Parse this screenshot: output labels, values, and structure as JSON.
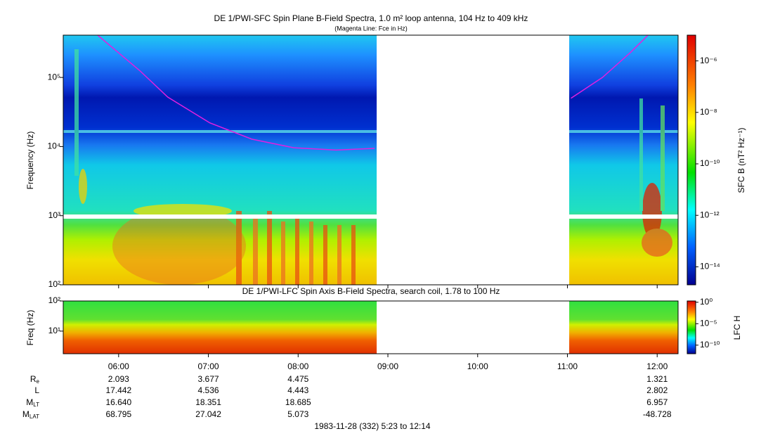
{
  "chart_data": [
    {
      "type": "spectrogram",
      "title": "DE 1/PWI-SFC  Spin Plane B-Field Spectra, 1.0 m² loop antenna, 104 Hz to 409 kHz",
      "subtitle": "(Magenta Line: Fce in Hz)",
      "ylabel": "Frequency (Hz)",
      "yscale": "log",
      "xlim": [
        5.383,
        12.233
      ],
      "ylim": [
        100,
        409000
      ],
      "yticks": [
        {
          "value": 100,
          "label": "10²"
        },
        {
          "value": 1000,
          "label": "10³"
        },
        {
          "value": 10000,
          "label": "10⁴"
        },
        {
          "value": 100000,
          "label": "10⁵"
        }
      ],
      "data_gap": [
        8.875,
        11.02
      ],
      "series": [
        {
          "color": "#e020e0",
          "x": [
            5.766,
            6.234,
            6.547,
            7.016,
            7.484,
            7.953,
            8.422,
            8.852,
            9.5,
            11.039,
            11.39,
            11.703,
            11.898
          ],
          "values": [
            409000,
            126000,
            52000,
            22000,
            12800,
            9600,
            8900,
            9400,
            null,
            50000,
            100000,
            230000,
            409000
          ]
        }
      ],
      "colorbar": {
        "label": "SFC B (nT² Hz⁻¹)",
        "scale": "log",
        "lim": [
          2e-15,
          1e-05
        ],
        "ticks": [
          {
            "value": 1e-06,
            "label": "10⁻⁶"
          },
          {
            "value": 1e-08,
            "label": "10⁻⁸"
          },
          {
            "value": 1e-10,
            "label": "10⁻¹⁰"
          },
          {
            "value": 1e-12,
            "label": "10⁻¹²"
          },
          {
            "value": 1e-14,
            "label": "10⁻¹⁴"
          }
        ]
      }
    },
    {
      "type": "spectrogram",
      "title": "DE 1/PWI-LFC  Spin Axis B-Field Spectra, search coil, 1.78 to 100 Hz",
      "ylabel": "Freq (Hz)",
      "yscale": "log",
      "xlim": [
        5.383,
        12.233
      ],
      "ylim": [
        1.78,
        100
      ],
      "yticks": [
        {
          "value": 10,
          "label": "10¹"
        },
        {
          "value": 100,
          "label": "10²"
        }
      ],
      "xticks": [
        {
          "value": 6,
          "label": "06:00"
        },
        {
          "value": 7,
          "label": "07:00"
        },
        {
          "value": 8,
          "label": "08:00"
        },
        {
          "value": 9,
          "label": "09:00"
        },
        {
          "value": 10,
          "label": "10:00"
        },
        {
          "value": 11,
          "label": "11:00"
        },
        {
          "value": 12,
          "label": "12:00"
        }
      ],
      "data_gap": [
        8.875,
        11.02
      ],
      "colorbar": {
        "label": "LFC H",
        "scale": "log",
        "lim": [
          1e-12,
          2
        ],
        "ticks": [
          {
            "value": 1,
            "label": "10⁰"
          },
          {
            "value": 1e-05,
            "label": "10⁻⁵"
          },
          {
            "value": 1e-10,
            "label": "10⁻¹⁰"
          }
        ]
      }
    }
  ],
  "ephemeris": {
    "rows": [
      {
        "label": "R",
        "sub": "e",
        "values": [
          "2.093",
          "3.677",
          "4.475",
          "1.321"
        ]
      },
      {
        "label": "L",
        "values": [
          "17.442",
          "4.536",
          "4.443",
          "2.802"
        ]
      },
      {
        "label": "M",
        "sub": "LT",
        "values": [
          "16.640",
          "18.351",
          "18.685",
          "6.957"
        ]
      },
      {
        "label": "M",
        "sub": "LAT",
        "values": [
          "68.795",
          "27.042",
          "5.073",
          "-48.728"
        ]
      }
    ]
  },
  "footer": "1983-11-28 (332) 5:23 to 12:14"
}
